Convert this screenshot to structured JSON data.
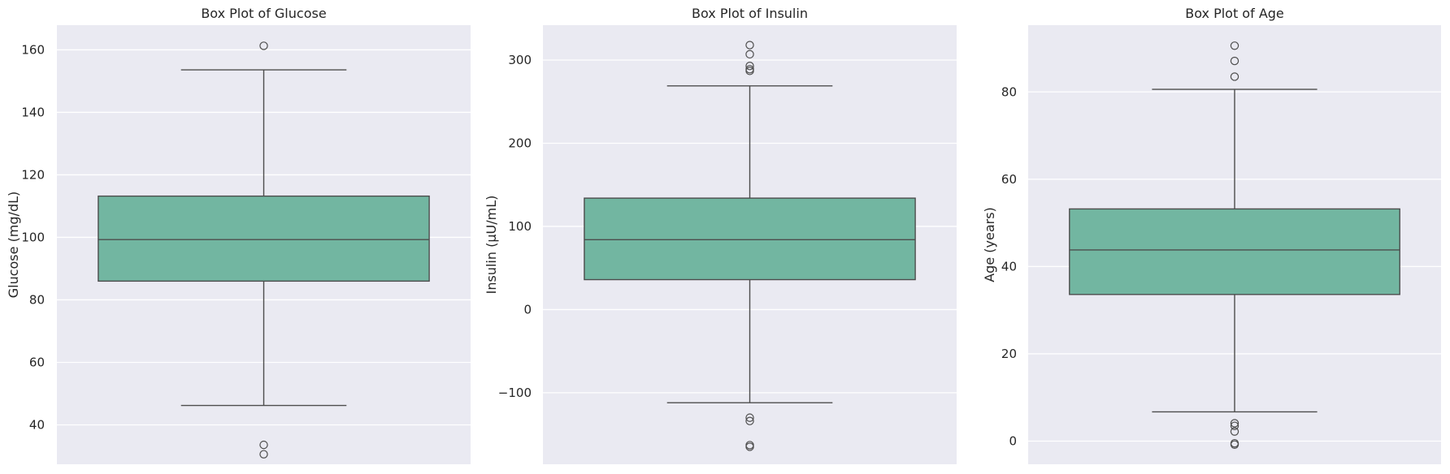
{
  "colors": {
    "background": "#eaeaf2",
    "grid": "#ffffff",
    "box_fill": "#72b6a1",
    "line": "#4d4d4d",
    "text": "#262626"
  },
  "chart_data": [
    {
      "type": "box",
      "title": "Box Plot of Glucose",
      "xlabel": "",
      "ylabel": "Glucose (mg/dL)",
      "ylim": [
        27.4,
        167.9
      ],
      "yticks": [
        40,
        60,
        80,
        100,
        120,
        140,
        160
      ],
      "grid": true,
      "stats": {
        "whisker_low": 46.2,
        "q1": 86.0,
        "median": 99.3,
        "q3": 113.2,
        "whisker_high": 153.6
      },
      "outliers": [
        161.3,
        33.6,
        30.6
      ]
    },
    {
      "type": "box",
      "title": "Box Plot of Insulin",
      "xlabel": "",
      "ylabel": "Insulin (μU/mL)",
      "ylim": [
        -186,
        342
      ],
      "yticks": [
        -100,
        0,
        100,
        200,
        300
      ],
      "grid": true,
      "stats": {
        "whisker_low": -112,
        "q1": 36,
        "median": 84,
        "q3": 134,
        "whisker_high": 269
      },
      "outliers": [
        318,
        307,
        293,
        289,
        287,
        -130,
        -134,
        -163,
        -165
      ]
    },
    {
      "type": "box",
      "title": "Box Plot of Age",
      "xlabel": "",
      "ylabel": "Age (years)",
      "ylim": [
        -5.3,
        95.3
      ],
      "yticks": [
        0,
        20,
        40,
        60,
        80
      ],
      "grid": true,
      "stats": {
        "whisker_low": 6.7,
        "q1": 33.6,
        "median": 43.8,
        "q3": 53.2,
        "whisker_high": 80.6
      },
      "outliers": [
        90.6,
        87.1,
        83.5,
        4.1,
        3.5,
        2.2,
        -0.5,
        -0.8
      ]
    }
  ]
}
